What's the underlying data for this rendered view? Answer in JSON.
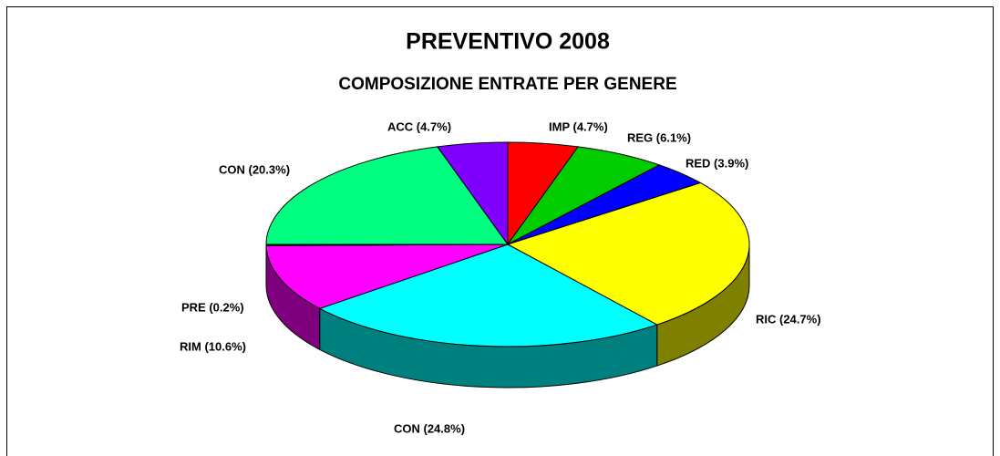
{
  "chart_data": {
    "type": "pie",
    "title": "PREVENTIVO  2008",
    "subtitle": "COMPOSIZIONE ENTRATE PER GENERE",
    "values": [
      4.7,
      6.1,
      3.9,
      24.7,
      24.8,
      10.6,
      0.2,
      20.3,
      4.7
    ],
    "value_labels": [
      "IMP (4.7%)",
      "REG (6.1%)",
      "RED (3.9%)",
      "RIC (24.7%)",
      "CON (24.8%)",
      "RIM (10.6%)",
      "PRE (0.2%)",
      "CON (20.3%)",
      "ACC (4.7%)"
    ],
    "colors": [
      "#ff0000",
      "#00cc00",
      "#0000ff",
      "#ffff00",
      "#00ffff",
      "#ff00ff",
      "#800000",
      "#00ff80",
      "#8000ff"
    ]
  }
}
